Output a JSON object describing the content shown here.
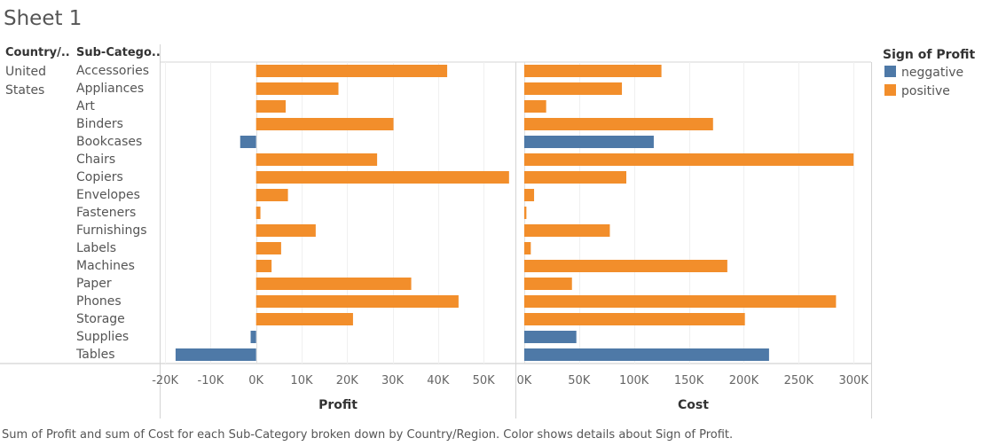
{
  "sheet": {
    "title": "Sheet 1"
  },
  "headers": {
    "country": "Country/..",
    "subcategory": "Sub-Catego.."
  },
  "country": {
    "line1": "United",
    "line2": "States"
  },
  "legend": {
    "title": "Sign of Profit",
    "items": [
      {
        "label": "neggative",
        "color": "#4e79a7"
      },
      {
        "label": "positive",
        "color": "#f28e2b"
      }
    ]
  },
  "caption": "Sum of Profit and sum of Cost for each Sub-Category broken down by Country/Region.  Color shows details about Sign of Profit.",
  "chart_data": [
    {
      "type": "bar",
      "orientation": "horizontal",
      "xlabel": "Profit",
      "xlim": [
        -21000,
        57000
      ],
      "ticks": [
        -20000,
        -10000,
        0,
        10000,
        20000,
        30000,
        40000,
        50000
      ],
      "tick_labels": [
        "-20K",
        "-10K",
        "0K",
        "10K",
        "20K",
        "30K",
        "40K",
        "50K"
      ],
      "categories": [
        "Accessories",
        "Appliances",
        "Art",
        "Binders",
        "Bookcases",
        "Chairs",
        "Copiers",
        "Envelopes",
        "Fasteners",
        "Furnishings",
        "Labels",
        "Machines",
        "Paper",
        "Phones",
        "Storage",
        "Supplies",
        "Tables"
      ],
      "values": [
        42000,
        18100,
        6500,
        30200,
        -3500,
        26600,
        55600,
        7000,
        950,
        13100,
        5500,
        3400,
        34100,
        44500,
        21300,
        -1200,
        -17700
      ],
      "sign": [
        "positive",
        "positive",
        "positive",
        "positive",
        "neggative",
        "positive",
        "positive",
        "positive",
        "positive",
        "positive",
        "positive",
        "positive",
        "positive",
        "positive",
        "positive",
        "neggative",
        "neggative"
      ]
    },
    {
      "type": "bar",
      "orientation": "horizontal",
      "xlabel": "Cost",
      "xlim": [
        -8000,
        316000
      ],
      "ticks": [
        0,
        50000,
        100000,
        150000,
        200000,
        250000,
        300000
      ],
      "tick_labels": [
        "0K",
        "50K",
        "100K",
        "150K",
        "200K",
        "250K",
        "300K"
      ],
      "categories": [
        "Accessories",
        "Appliances",
        "Art",
        "Binders",
        "Bookcases",
        "Chairs",
        "Copiers",
        "Envelopes",
        "Fasteners",
        "Furnishings",
        "Labels",
        "Machines",
        "Paper",
        "Phones",
        "Storage",
        "Supplies",
        "Tables"
      ],
      "values": [
        125000,
        89000,
        20000,
        172000,
        118000,
        300000,
        93000,
        9000,
        2000,
        78000,
        6000,
        185000,
        43500,
        284000,
        201000,
        47500,
        223000
      ],
      "sign": [
        "positive",
        "positive",
        "positive",
        "positive",
        "neggative",
        "positive",
        "positive",
        "positive",
        "positive",
        "positive",
        "positive",
        "positive",
        "positive",
        "positive",
        "positive",
        "neggative",
        "neggative"
      ]
    }
  ]
}
